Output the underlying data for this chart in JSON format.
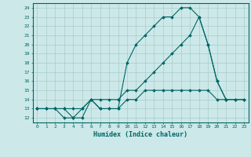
{
  "xlabel": "Humidex (Indice chaleur)",
  "x_values": [
    0,
    1,
    2,
    3,
    4,
    5,
    6,
    7,
    8,
    9,
    10,
    11,
    12,
    13,
    14,
    15,
    16,
    17,
    18,
    19,
    20,
    21,
    22,
    23
  ],
  "line2": [
    13,
    13,
    13,
    13,
    12,
    13,
    14,
    13,
    13,
    13,
    14,
    14,
    15,
    15,
    15,
    15,
    15,
    15,
    15,
    15,
    14,
    14,
    14,
    14
  ],
  "line3": [
    13,
    13,
    13,
    12,
    12,
    12,
    14,
    13,
    13,
    13,
    18,
    20,
    21,
    22,
    23,
    23,
    24,
    24,
    23,
    20,
    16,
    14,
    14,
    14
  ],
  "line4": [
    13,
    13,
    13,
    13,
    13,
    13,
    14,
    14,
    14,
    14,
    15,
    15,
    16,
    17,
    18,
    19,
    20,
    21,
    23,
    20,
    16,
    14,
    null,
    null
  ],
  "bg_color": "#cce8e8",
  "grid_color": "#aacccc",
  "line_color": "#006666",
  "xlim": [
    -0.5,
    23.5
  ],
  "ylim": [
    11.5,
    24.5
  ],
  "yticks": [
    12,
    13,
    14,
    15,
    16,
    17,
    18,
    19,
    20,
    21,
    22,
    23,
    24
  ],
  "xticks": [
    0,
    1,
    2,
    3,
    4,
    5,
    6,
    7,
    8,
    9,
    10,
    11,
    12,
    13,
    14,
    15,
    16,
    17,
    18,
    19,
    20,
    21,
    22,
    23
  ]
}
